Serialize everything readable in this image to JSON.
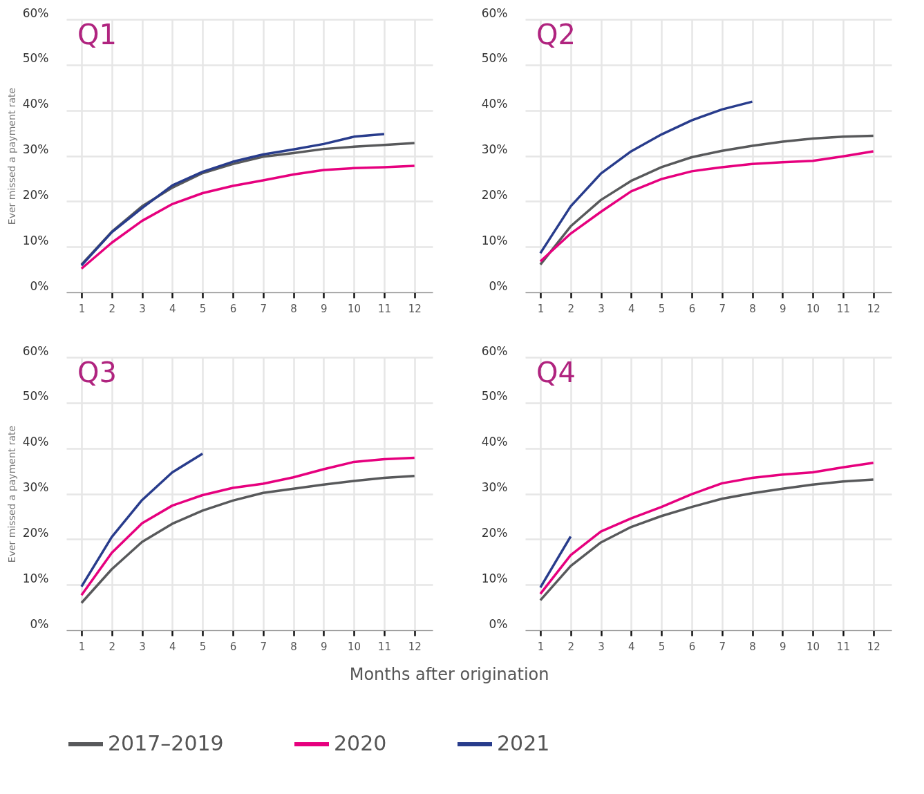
{
  "chart_data": [
    {
      "type": "line",
      "title": "Q1",
      "ylabel": "Ever missed a payment rate",
      "x": [
        1,
        2,
        3,
        4,
        5,
        6,
        7,
        8,
        9,
        10,
        11,
        12
      ],
      "xlim": [
        0.5,
        12.6
      ],
      "xticks": [
        1,
        2,
        3,
        4,
        5,
        6,
        7,
        8,
        9,
        10,
        11,
        12
      ],
      "ylim": [
        0,
        60
      ],
      "yticks": [
        {
          "value": 0,
          "label": "0%"
        },
        {
          "value": 10,
          "label": "10%"
        },
        {
          "value": 20,
          "label": "20%"
        },
        {
          "value": 30,
          "label": "30%"
        },
        {
          "value": 40,
          "label": "40%"
        },
        {
          "value": 50,
          "label": "50%"
        },
        {
          "value": 60,
          "label": "60%"
        }
      ],
      "grid": true,
      "legend": "bottom",
      "series": [
        {
          "name": "2017–2019",
          "color": "#58595b",
          "values": [
            6.1,
            13.3,
            18.9,
            23,
            26.2,
            28.2,
            29.8,
            30.6,
            31.5,
            32,
            32.4,
            32.8
          ]
        },
        {
          "name": "2020",
          "color": "#e6007e",
          "values": [
            5.2,
            10.9,
            15.7,
            19.4,
            21.8,
            23.4,
            24.6,
            25.9,
            26.9,
            27.3,
            27.5,
            27.8
          ]
        },
        {
          "name": "2021",
          "color": "#283c8c",
          "values": [
            5.9,
            13.2,
            18.5,
            23.5,
            26.5,
            28.7,
            30.3,
            31.4,
            32.6,
            34.2,
            34.8,
            null
          ]
        }
      ]
    },
    {
      "type": "line",
      "title": "Q2",
      "x": [
        1,
        2,
        3,
        4,
        5,
        6,
        7,
        8,
        9,
        10,
        11,
        12
      ],
      "xlim": [
        0.5,
        12.6
      ],
      "xticks": [
        1,
        2,
        3,
        4,
        5,
        6,
        7,
        8,
        9,
        10,
        11,
        12
      ],
      "ylim": [
        0,
        60
      ],
      "yticks": [
        {
          "value": 0,
          "label": "0%"
        },
        {
          "value": 10,
          "label": "10%"
        },
        {
          "value": 20,
          "label": "20%"
        },
        {
          "value": 30,
          "label": "30%"
        },
        {
          "value": 40,
          "label": "40%"
        },
        {
          "value": 50,
          "label": "50%"
        },
        {
          "value": 60,
          "label": "60%"
        }
      ],
      "grid": true,
      "legend": "bottom",
      "series": [
        {
          "name": "2017–2019",
          "color": "#58595b",
          "values": [
            6.1,
            14.5,
            20.3,
            24.5,
            27.5,
            29.7,
            31.1,
            32.2,
            33.1,
            33.8,
            34.2,
            34.4
          ]
        },
        {
          "name": "2020",
          "color": "#e6007e",
          "values": [
            6.8,
            12.9,
            17.7,
            22.2,
            24.9,
            26.6,
            27.5,
            28.2,
            28.6,
            28.9,
            29.9,
            31
          ]
        },
        {
          "name": "2021",
          "color": "#283c8c",
          "values": [
            8.6,
            18.9,
            26.1,
            31,
            34.7,
            37.8,
            40.2,
            41.9,
            null,
            null,
            null,
            null
          ]
        }
      ]
    },
    {
      "type": "line",
      "title": "Q3",
      "ylabel": "Ever missed a payment rate",
      "xlabel": "Months after origination",
      "x": [
        1,
        2,
        3,
        4,
        5,
        6,
        7,
        8,
        9,
        10,
        11,
        12
      ],
      "xlim": [
        0.5,
        12.6
      ],
      "xticks": [
        1,
        2,
        3,
        4,
        5,
        6,
        7,
        8,
        9,
        10,
        11,
        12
      ],
      "ylim": [
        0,
        60
      ],
      "yticks": [
        {
          "value": 0,
          "label": "0%"
        },
        {
          "value": 10,
          "label": "10%"
        },
        {
          "value": 20,
          "label": "20%"
        },
        {
          "value": 30,
          "label": "30%"
        },
        {
          "value": 40,
          "label": "40%"
        },
        {
          "value": 50,
          "label": "50%"
        },
        {
          "value": 60,
          "label": "60%"
        }
      ],
      "grid": true,
      "legend": "bottom",
      "series": [
        {
          "name": "2017–2019",
          "color": "#58595b",
          "values": [
            6,
            13.4,
            19.4,
            23.4,
            26.3,
            28.5,
            30.2,
            31.1,
            32,
            32.8,
            33.5,
            33.9
          ]
        },
        {
          "name": "2020",
          "color": "#e6007e",
          "values": [
            7.7,
            17,
            23.5,
            27.4,
            29.7,
            31.3,
            32.2,
            33.6,
            35.4,
            37,
            37.6,
            37.9
          ]
        },
        {
          "name": "2021",
          "color": "#283c8c",
          "values": [
            9.6,
            20.5,
            28.6,
            34.7,
            38.8,
            null,
            null,
            null,
            null,
            null,
            null,
            null
          ]
        }
      ]
    },
    {
      "type": "line",
      "title": "Q4",
      "x": [
        1,
        2,
        3,
        4,
        5,
        6,
        7,
        8,
        9,
        10,
        11,
        12
      ],
      "xlim": [
        0.5,
        12.6
      ],
      "xticks": [
        1,
        2,
        3,
        4,
        5,
        6,
        7,
        8,
        9,
        10,
        11,
        12
      ],
      "ylim": [
        0,
        60
      ],
      "yticks": [
        {
          "value": 0,
          "label": "0%"
        },
        {
          "value": 10,
          "label": "10%"
        },
        {
          "value": 20,
          "label": "20%"
        },
        {
          "value": 30,
          "label": "30%"
        },
        {
          "value": 40,
          "label": "40%"
        },
        {
          "value": 50,
          "label": "50%"
        },
        {
          "value": 60,
          "label": "60%"
        }
      ],
      "grid": true,
      "legend": "bottom",
      "series": [
        {
          "name": "2017–2019",
          "color": "#58595b",
          "values": [
            6.6,
            14.1,
            19.3,
            22.7,
            25.1,
            27.1,
            28.9,
            30.1,
            31.1,
            32,
            32.7,
            33.1
          ]
        },
        {
          "name": "2020",
          "color": "#e6007e",
          "values": [
            8,
            16.5,
            21.7,
            24.6,
            27.1,
            29.9,
            32.3,
            33.5,
            34.2,
            34.7,
            35.8,
            36.8
          ]
        },
        {
          "name": "2021",
          "color": "#283c8c",
          "values": [
            9.4,
            20.6,
            null,
            null,
            null,
            null,
            null,
            null,
            null,
            null,
            null,
            null
          ]
        }
      ]
    }
  ]
}
